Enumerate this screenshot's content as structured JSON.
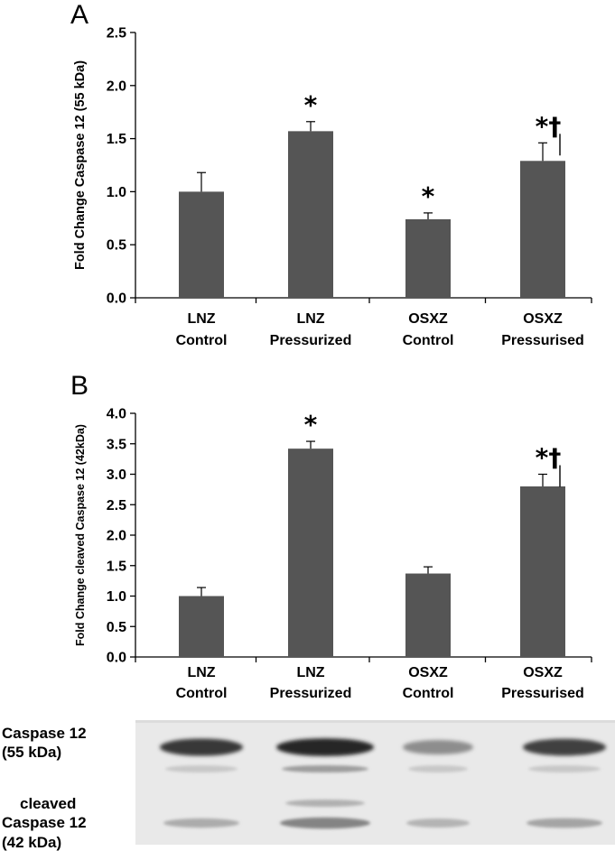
{
  "chart_data": [
    {
      "panel": "A",
      "type": "bar",
      "categories": [
        [
          "LNZ",
          "Control"
        ],
        [
          "LNZ",
          "Pressurized"
        ],
        [
          "OSXZ",
          "Control"
        ],
        [
          "OSXZ",
          "Pressurised"
        ]
      ],
      "values": [
        1.0,
        1.57,
        0.74,
        1.29
      ],
      "errors": [
        0.18,
        0.09,
        0.06,
        0.17
      ],
      "annotations": [
        "",
        "*",
        "*",
        "*†"
      ],
      "ylabel": "Fold Change Caspase 12 (55 kDa)",
      "ylim": [
        0,
        2.5
      ],
      "yticks": [
        "0.0",
        "0.5",
        "1.0",
        "1.5",
        "2.0",
        "2.5"
      ],
      "bar_color": "#555555"
    },
    {
      "panel": "B",
      "type": "bar",
      "categories": [
        [
          "LNZ",
          "Control"
        ],
        [
          "LNZ",
          "Pressurized"
        ],
        [
          "OSXZ",
          "Control"
        ],
        [
          "OSXZ",
          "Pressurised"
        ]
      ],
      "values": [
        1.0,
        3.42,
        1.37,
        2.8
      ],
      "errors": [
        0.14,
        0.12,
        0.11,
        0.2
      ],
      "annotations": [
        "",
        "*",
        "",
        "*†"
      ],
      "ylabel": "Fold Change cleaved Caspase 12 (42kDa)",
      "ylim": [
        0,
        4.0
      ],
      "yticks": [
        "0.0",
        "0.5",
        "1.0",
        "1.5",
        "2.0",
        "2.5",
        "3.0",
        "3.5",
        "4.0"
      ],
      "bar_color": "#555555"
    }
  ],
  "blot": {
    "labels": [
      [
        "Caspase 12",
        "(55 kDa)"
      ],
      [
        "cleaved",
        "Caspase 12",
        "(42 kDa)"
      ]
    ],
    "band_intensity_55kDa": [
      0.85,
      0.95,
      0.35,
      0.8
    ],
    "band_intensity_42kDa": [
      0.3,
      0.55,
      0.25,
      0.35
    ]
  }
}
